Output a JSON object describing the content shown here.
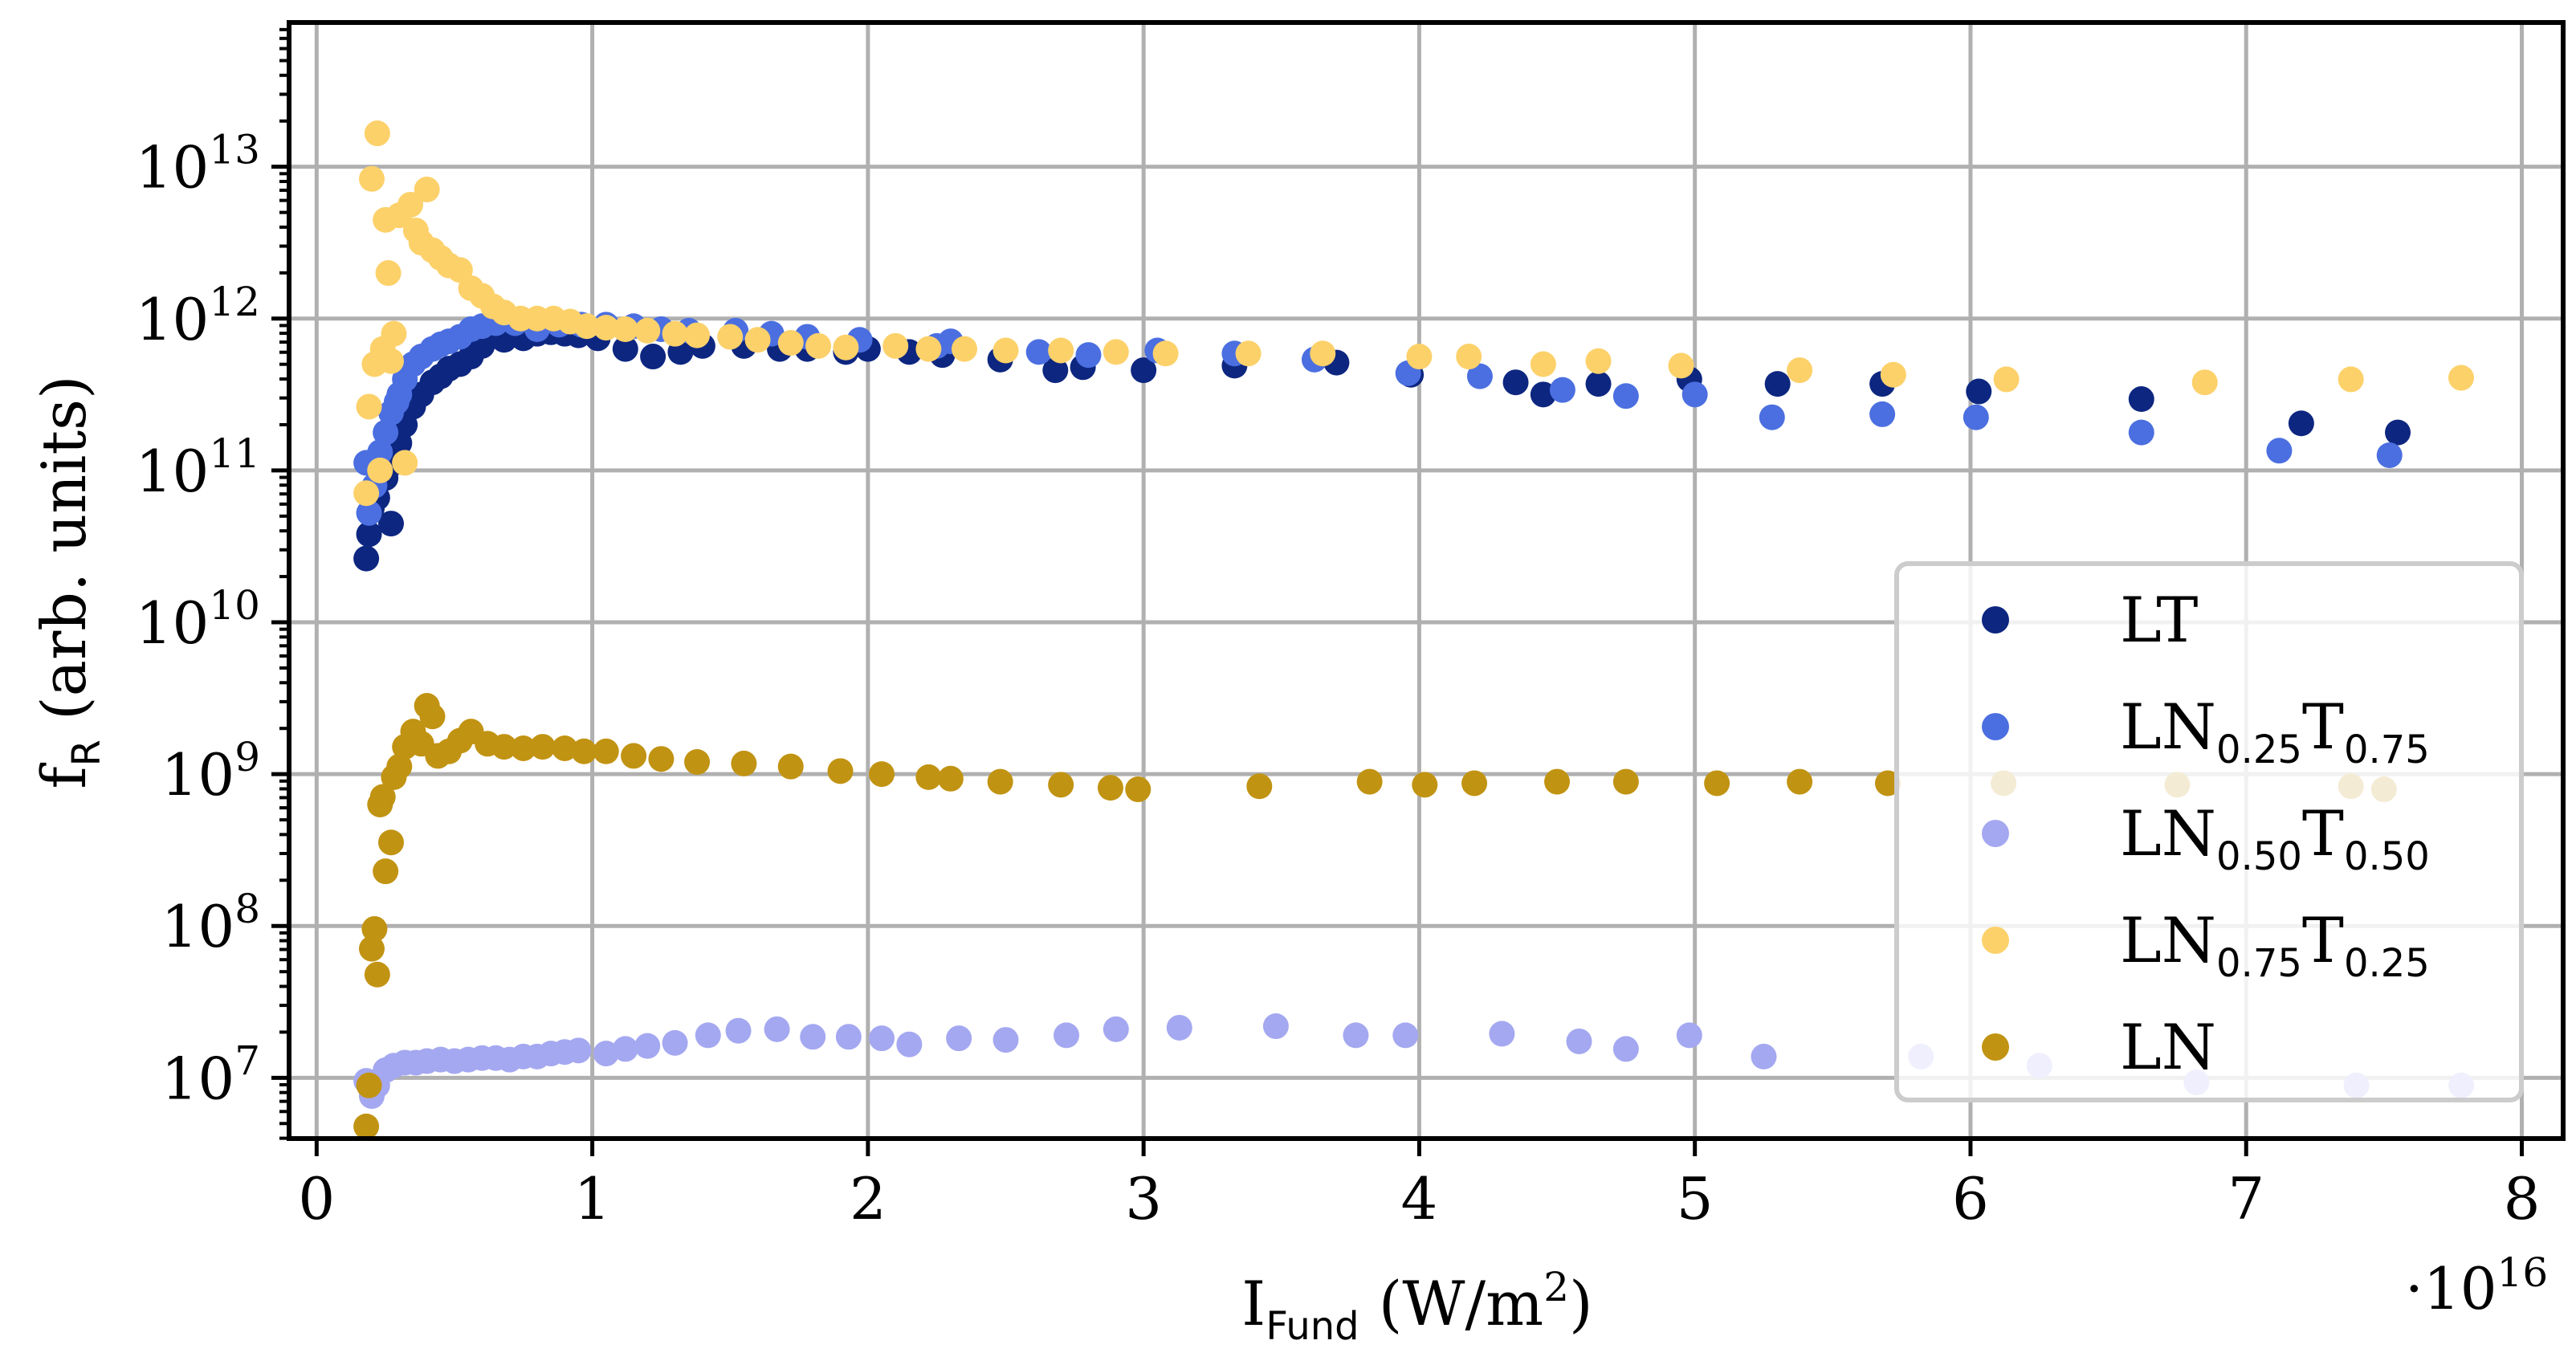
{
  "chart_data": {
    "type": "scatter",
    "title": "",
    "xlabel": {
      "main": "I",
      "sub": "Fund",
      "rest": " (W/m",
      "sup": "2",
      "end": ")"
    },
    "ylabel": {
      "main": "f",
      "sub": "R",
      "rest": " (arb. units)"
    },
    "x_multiplier": {
      "prefix": "·10",
      "exp": "16"
    },
    "xlim": [
      -0.1,
      8.15
    ],
    "ylim_log10": [
      6.6,
      13.95
    ],
    "yscale": "log",
    "grid": true,
    "legend_position": "right-bottom",
    "x_ticks": [
      {
        "value": 0,
        "label": "0"
      },
      {
        "value": 1,
        "label": "1"
      },
      {
        "value": 2,
        "label": "2"
      },
      {
        "value": 3,
        "label": "3"
      },
      {
        "value": 4,
        "label": "4"
      },
      {
        "value": 5,
        "label": "5"
      },
      {
        "value": 6,
        "label": "6"
      },
      {
        "value": 7,
        "label": "7"
      },
      {
        "value": 8,
        "label": "8"
      }
    ],
    "y_ticks": [
      {
        "exp": 7,
        "base": "10",
        "sup": "7"
      },
      {
        "exp": 8,
        "base": "10",
        "sup": "8"
      },
      {
        "exp": 9,
        "base": "10",
        "sup": "9"
      },
      {
        "exp": 10,
        "base": "10",
        "sup": "10"
      },
      {
        "exp": 11,
        "base": "10",
        "sup": "11"
      },
      {
        "exp": 12,
        "base": "10",
        "sup": "12"
      },
      {
        "exp": 13,
        "base": "10",
        "sup": "13"
      }
    ],
    "series": [
      {
        "id": "LT",
        "color": "#0d2680",
        "legend": {
          "parts": [
            {
              "t": "LT",
              "sub": false
            }
          ]
        },
        "points": [
          [
            0.18,
            10.42
          ],
          [
            0.19,
            10.58
          ],
          [
            0.2,
            10.75
          ],
          [
            0.21,
            10.88
          ],
          [
            0.22,
            10.82
          ],
          [
            0.25,
            10.95
          ],
          [
            0.27,
            10.65
          ],
          [
            0.28,
            11.05
          ],
          [
            0.3,
            11.18
          ],
          [
            0.32,
            11.3
          ],
          [
            0.35,
            11.42
          ],
          [
            0.38,
            11.5
          ],
          [
            0.42,
            11.58
          ],
          [
            0.45,
            11.62
          ],
          [
            0.48,
            11.67
          ],
          [
            0.52,
            11.7
          ],
          [
            0.56,
            11.75
          ],
          [
            0.6,
            11.82
          ],
          [
            0.63,
            11.88
          ],
          [
            0.68,
            11.86
          ],
          [
            0.75,
            11.87
          ],
          [
            0.8,
            11.9
          ],
          [
            0.85,
            11.91
          ],
          [
            0.9,
            11.9
          ],
          [
            0.95,
            11.89
          ],
          [
            1.02,
            11.87
          ],
          [
            1.12,
            11.8
          ],
          [
            1.22,
            11.75
          ],
          [
            1.32,
            11.78
          ],
          [
            1.4,
            11.82
          ],
          [
            1.55,
            11.82
          ],
          [
            1.68,
            11.8
          ],
          [
            1.78,
            11.8
          ],
          [
            1.92,
            11.78
          ],
          [
            2.0,
            11.8
          ],
          [
            2.15,
            11.78
          ],
          [
            2.27,
            11.76
          ],
          [
            2.48,
            11.73
          ],
          [
            2.68,
            11.66
          ],
          [
            2.78,
            11.68
          ],
          [
            3.0,
            11.66
          ],
          [
            3.33,
            11.69
          ],
          [
            3.7,
            11.71
          ],
          [
            3.97,
            11.63
          ],
          [
            4.35,
            11.58
          ],
          [
            4.45,
            11.5
          ],
          [
            4.65,
            11.57
          ],
          [
            4.98,
            11.6
          ],
          [
            5.3,
            11.57
          ],
          [
            5.68,
            11.57
          ],
          [
            6.03,
            11.52
          ],
          [
            6.62,
            11.47
          ],
          [
            7.2,
            11.31
          ],
          [
            7.55,
            11.25
          ]
        ]
      },
      {
        "id": "LN025T075",
        "color": "#4b6fe0",
        "legend": {
          "parts": [
            {
              "t": "LN",
              "sub": false
            },
            {
              "t": "0.25",
              "sub": true
            },
            {
              "t": "T",
              "sub": false
            },
            {
              "t": "0.75",
              "sub": true
            }
          ]
        },
        "points": [
          [
            0.18,
            11.05
          ],
          [
            0.19,
            10.72
          ],
          [
            0.21,
            10.9
          ],
          [
            0.23,
            11.12
          ],
          [
            0.25,
            11.25
          ],
          [
            0.27,
            11.38
          ],
          [
            0.29,
            11.45
          ],
          [
            0.3,
            11.5
          ],
          [
            0.32,
            11.6
          ],
          [
            0.35,
            11.7
          ],
          [
            0.38,
            11.75
          ],
          [
            0.42,
            11.8
          ],
          [
            0.45,
            11.83
          ],
          [
            0.48,
            11.85
          ],
          [
            0.52,
            11.88
          ],
          [
            0.56,
            11.93
          ],
          [
            0.6,
            11.95
          ],
          [
            0.65,
            11.97
          ],
          [
            0.72,
            11.97
          ],
          [
            0.8,
            11.93
          ],
          [
            0.88,
            11.96
          ],
          [
            0.96,
            11.96
          ],
          [
            1.05,
            11.96
          ],
          [
            1.15,
            11.95
          ],
          [
            1.25,
            11.93
          ],
          [
            1.35,
            11.92
          ],
          [
            1.52,
            11.92
          ],
          [
            1.65,
            11.9
          ],
          [
            1.78,
            11.88
          ],
          [
            1.97,
            11.86
          ],
          [
            2.25,
            11.82
          ],
          [
            2.3,
            11.85
          ],
          [
            2.62,
            11.78
          ],
          [
            2.8,
            11.76
          ],
          [
            3.05,
            11.79
          ],
          [
            3.33,
            11.77
          ],
          [
            3.62,
            11.73
          ],
          [
            3.96,
            11.64
          ],
          [
            4.22,
            11.62
          ],
          [
            4.52,
            11.53
          ],
          [
            4.75,
            11.49
          ],
          [
            5.0,
            11.5
          ],
          [
            5.28,
            11.35
          ],
          [
            5.68,
            11.37
          ],
          [
            6.02,
            11.35
          ],
          [
            6.62,
            11.25
          ],
          [
            7.12,
            11.13
          ],
          [
            7.52,
            11.1
          ]
        ]
      },
      {
        "id": "LN050T050",
        "color": "#a4a8f0",
        "legend": {
          "parts": [
            {
              "t": "LN",
              "sub": false
            },
            {
              "t": "0.50",
              "sub": true
            },
            {
              "t": "T",
              "sub": false
            },
            {
              "t": "0.50",
              "sub": true
            }
          ]
        },
        "points": [
          [
            0.18,
            6.98
          ],
          [
            0.2,
            6.88
          ],
          [
            0.22,
            6.95
          ],
          [
            0.25,
            7.05
          ],
          [
            0.28,
            7.08
          ],
          [
            0.32,
            7.1
          ],
          [
            0.36,
            7.1
          ],
          [
            0.4,
            7.11
          ],
          [
            0.45,
            7.12
          ],
          [
            0.5,
            7.11
          ],
          [
            0.55,
            7.12
          ],
          [
            0.6,
            7.13
          ],
          [
            0.65,
            7.13
          ],
          [
            0.7,
            7.12
          ],
          [
            0.75,
            7.14
          ],
          [
            0.8,
            7.14
          ],
          [
            0.85,
            7.16
          ],
          [
            0.9,
            7.17
          ],
          [
            0.95,
            7.18
          ],
          [
            1.05,
            7.16
          ],
          [
            1.12,
            7.19
          ],
          [
            1.2,
            7.21
          ],
          [
            1.3,
            7.23
          ],
          [
            1.42,
            7.28
          ],
          [
            1.53,
            7.31
          ],
          [
            1.67,
            7.32
          ],
          [
            1.8,
            7.27
          ],
          [
            1.93,
            7.27
          ],
          [
            2.05,
            7.26
          ],
          [
            2.15,
            7.22
          ],
          [
            2.33,
            7.26
          ],
          [
            2.5,
            7.25
          ],
          [
            2.72,
            7.28
          ],
          [
            2.9,
            7.32
          ],
          [
            3.13,
            7.33
          ],
          [
            3.48,
            7.34
          ],
          [
            3.77,
            7.28
          ],
          [
            3.95,
            7.28
          ],
          [
            4.3,
            7.29
          ],
          [
            4.58,
            7.24
          ],
          [
            4.75,
            7.19
          ],
          [
            4.98,
            7.28
          ],
          [
            5.25,
            7.14
          ],
          [
            5.82,
            7.14
          ],
          [
            6.25,
            7.08
          ],
          [
            6.82,
            6.97
          ],
          [
            7.4,
            6.95
          ],
          [
            7.78,
            6.95
          ]
        ]
      },
      {
        "id": "LN075T025",
        "color": "#fcd16a",
        "legend": {
          "parts": [
            {
              "t": "LN",
              "sub": false
            },
            {
              "t": "0.75",
              "sub": true
            },
            {
              "t": "T",
              "sub": false
            },
            {
              "t": "0.25",
              "sub": true
            }
          ]
        },
        "points": [
          [
            0.18,
            10.85
          ],
          [
            0.19,
            11.42
          ],
          [
            0.2,
            12.92
          ],
          [
            0.21,
            11.7
          ],
          [
            0.22,
            13.22
          ],
          [
            0.23,
            11.0
          ],
          [
            0.24,
            11.8
          ],
          [
            0.25,
            12.65
          ],
          [
            0.26,
            12.3
          ],
          [
            0.27,
            11.72
          ],
          [
            0.28,
            11.9
          ],
          [
            0.3,
            12.68
          ],
          [
            0.32,
            11.05
          ],
          [
            0.34,
            12.75
          ],
          [
            0.36,
            12.58
          ],
          [
            0.38,
            12.5
          ],
          [
            0.4,
            12.85
          ],
          [
            0.42,
            12.45
          ],
          [
            0.45,
            12.4
          ],
          [
            0.48,
            12.35
          ],
          [
            0.52,
            12.32
          ],
          [
            0.56,
            12.2
          ],
          [
            0.6,
            12.15
          ],
          [
            0.64,
            12.08
          ],
          [
            0.68,
            12.04
          ],
          [
            0.74,
            12.0
          ],
          [
            0.8,
            12.0
          ],
          [
            0.86,
            12.0
          ],
          [
            0.92,
            11.98
          ],
          [
            0.98,
            11.95
          ],
          [
            1.05,
            11.94
          ],
          [
            1.12,
            11.93
          ],
          [
            1.2,
            11.92
          ],
          [
            1.3,
            11.9
          ],
          [
            1.38,
            11.89
          ],
          [
            1.5,
            11.88
          ],
          [
            1.6,
            11.86
          ],
          [
            1.72,
            11.84
          ],
          [
            1.82,
            11.82
          ],
          [
            1.92,
            11.81
          ],
          [
            2.1,
            11.82
          ],
          [
            2.22,
            11.8
          ],
          [
            2.35,
            11.8
          ],
          [
            2.5,
            11.79
          ],
          [
            2.7,
            11.79
          ],
          [
            2.9,
            11.78
          ],
          [
            3.08,
            11.77
          ],
          [
            3.38,
            11.77
          ],
          [
            3.65,
            11.77
          ],
          [
            4.0,
            11.75
          ],
          [
            4.18,
            11.75
          ],
          [
            4.45,
            11.7
          ],
          [
            4.65,
            11.72
          ],
          [
            4.95,
            11.69
          ],
          [
            5.38,
            11.66
          ],
          [
            5.72,
            11.63
          ],
          [
            6.13,
            11.6
          ],
          [
            6.85,
            11.58
          ],
          [
            7.38,
            11.6
          ],
          [
            7.78,
            11.61
          ]
        ]
      },
      {
        "id": "LN",
        "color": "#c19312",
        "legend": {
          "parts": [
            {
              "t": "LN",
              "sub": false
            }
          ]
        },
        "points": [
          [
            0.18,
            6.68
          ],
          [
            0.19,
            6.95
          ],
          [
            0.2,
            7.85
          ],
          [
            0.21,
            7.98
          ],
          [
            0.22,
            7.68
          ],
          [
            0.23,
            8.8
          ],
          [
            0.24,
            8.85
          ],
          [
            0.25,
            8.36
          ],
          [
            0.27,
            8.55
          ],
          [
            0.28,
            8.98
          ],
          [
            0.3,
            9.05
          ],
          [
            0.32,
            9.18
          ],
          [
            0.35,
            9.28
          ],
          [
            0.38,
            9.2
          ],
          [
            0.4,
            9.45
          ],
          [
            0.42,
            9.38
          ],
          [
            0.44,
            9.12
          ],
          [
            0.48,
            9.15
          ],
          [
            0.52,
            9.22
          ],
          [
            0.56,
            9.28
          ],
          [
            0.62,
            9.2
          ],
          [
            0.68,
            9.18
          ],
          [
            0.75,
            9.17
          ],
          [
            0.82,
            9.18
          ],
          [
            0.9,
            9.17
          ],
          [
            0.97,
            9.15
          ],
          [
            1.05,
            9.15
          ],
          [
            1.15,
            9.12
          ],
          [
            1.25,
            9.1
          ],
          [
            1.38,
            9.08
          ],
          [
            1.55,
            9.07
          ],
          [
            1.72,
            9.05
          ],
          [
            1.9,
            9.02
          ],
          [
            2.05,
            9.0
          ],
          [
            2.22,
            8.98
          ],
          [
            2.3,
            8.97
          ],
          [
            2.48,
            8.95
          ],
          [
            2.7,
            8.93
          ],
          [
            2.88,
            8.91
          ],
          [
            2.98,
            8.9
          ],
          [
            3.42,
            8.92
          ],
          [
            3.82,
            8.95
          ],
          [
            4.02,
            8.93
          ],
          [
            4.2,
            8.94
          ],
          [
            4.5,
            8.95
          ],
          [
            4.75,
            8.95
          ],
          [
            5.08,
            8.94
          ],
          [
            5.38,
            8.95
          ],
          [
            5.7,
            8.94
          ],
          [
            6.12,
            8.94
          ],
          [
            6.75,
            8.93
          ],
          [
            7.38,
            8.92
          ],
          [
            7.5,
            8.9
          ]
        ]
      }
    ]
  }
}
